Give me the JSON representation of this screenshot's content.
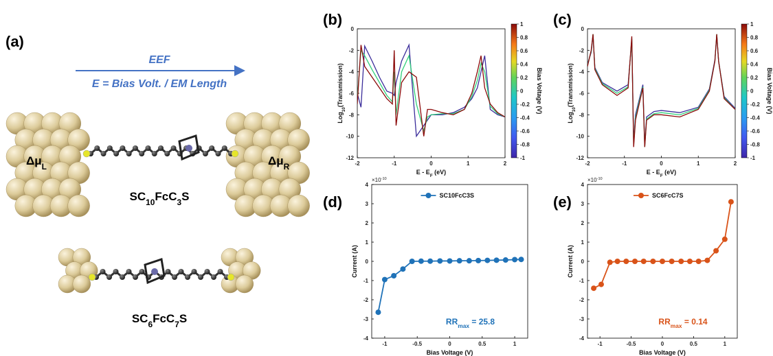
{
  "panel_a": {
    "label": "(a)",
    "arrow_top": "EEF",
    "arrow_bottom": "E = Bias Volt. / EM Length",
    "mu_left_parts": [
      "Δμ",
      "L"
    ],
    "mu_right_parts": [
      "Δμ",
      "R"
    ],
    "molecule_1_parts": [
      "SC",
      "10",
      "FcC",
      "3",
      "S"
    ],
    "molecule_2_parts": [
      "SC",
      "6",
      "FcC",
      "7",
      "S"
    ]
  },
  "chart_data": [
    {
      "type": "line",
      "panel_label": "(b)",
      "x_label_parts": [
        "E - E",
        "F",
        " (eV)"
      ],
      "y_label_parts": [
        "Log",
        "10",
        "(Transmission)"
      ],
      "xlim": [
        -2,
        2
      ],
      "xticks": [
        -2,
        -1,
        0,
        1,
        2
      ],
      "ylim": [
        -12,
        0
      ],
      "yticks": [
        -12,
        -10,
        -8,
        -6,
        -4,
        -2,
        0
      ],
      "colorbar_label": "Bias Voltage (V)",
      "colorbar_lim": [
        -1,
        1
      ],
      "colorbar_ticks": [
        -1,
        -0.8,
        -0.6,
        -0.4,
        -0.2,
        0,
        0.2,
        0.4,
        0.6,
        0.8,
        1
      ],
      "x": [
        -2,
        -1.9,
        -1.8,
        -1.6,
        -1.4,
        -1.2,
        -1.05,
        -1,
        -0.95,
        -0.8,
        -0.6,
        -0.4,
        -0.2,
        -0.1,
        0,
        0.3,
        0.6,
        0.9,
        1.1,
        1.25,
        1.35,
        1.45,
        1.6,
        1.8,
        2
      ],
      "series": [
        {
          "color": "#3a2c9a",
          "values": [
            -6,
            -7.3,
            -1.6,
            -3,
            -4.5,
            -5.8,
            -6,
            -6.2,
            -5,
            -3,
            -1.5,
            -10,
            -9,
            -8.5,
            -8,
            -8,
            -7.8,
            -7.3,
            -6.5,
            -5.5,
            -4,
            -2.5,
            -7.5,
            -8,
            -8.2
          ]
        },
        {
          "color": "#2fcf7a",
          "values": [
            -6.5,
            -2,
            -2.5,
            -3.8,
            -5,
            -6.2,
            -6.8,
            -4,
            -8,
            -4,
            -2.5,
            -7,
            -9.5,
            -8.2,
            -8,
            -7.9,
            -7.9,
            -7.5,
            -6.3,
            -4.8,
            -3.2,
            -4,
            -7.2,
            -7.9,
            -8.2
          ]
        },
        {
          "color": "#8b0a0a",
          "values": [
            -7,
            -1.5,
            -3.5,
            -4.5,
            -5.5,
            -6.5,
            -7,
            -2,
            -9,
            -5,
            -4,
            -4.5,
            -10,
            -7.5,
            -7.5,
            -7.8,
            -8,
            -7.5,
            -6,
            -4,
            -2.5,
            -5.5,
            -7,
            -7.8,
            -8.2
          ]
        }
      ]
    },
    {
      "type": "line",
      "panel_label": "(c)",
      "x_label_parts": [
        "E - E",
        "F",
        " (eV)"
      ],
      "y_label_parts": [
        "Log",
        "10",
        "(Transmission)"
      ],
      "xlim": [
        -2,
        2
      ],
      "xticks": [
        -2,
        -1,
        0,
        1,
        2
      ],
      "ylim": [
        -12,
        0
      ],
      "yticks": [
        -12,
        -10,
        -8,
        -6,
        -4,
        -2,
        0
      ],
      "colorbar_label": "Bias Voltage (V)",
      "colorbar_lim": [
        -1,
        1
      ],
      "colorbar_ticks": [
        -1,
        -0.8,
        -0.6,
        -0.4,
        -0.2,
        0,
        0.2,
        0.4,
        0.6,
        0.8,
        1
      ],
      "x": [
        -2,
        -1.9,
        -1.85,
        -1.8,
        -1.6,
        -1.2,
        -0.9,
        -0.8,
        -0.75,
        -0.7,
        -0.6,
        -0.5,
        -0.45,
        -0.4,
        -0.2,
        0,
        0.5,
        1,
        1.3,
        1.45,
        1.5,
        1.55,
        1.7,
        2
      ],
      "series": [
        {
          "color": "#3a2c9a",
          "values": [
            -3.3,
            -2.2,
            -0.6,
            -3.6,
            -5,
            -5.8,
            -5.2,
            -1,
            -10.5,
            -8,
            -6.6,
            -5.2,
            -10.8,
            -8.2,
            -7.7,
            -7.6,
            -7.8,
            -7.3,
            -5.6,
            -2.9,
            -0.6,
            -3,
            -6.3,
            -7.4
          ]
        },
        {
          "color": "#2fcf7a",
          "values": [
            -3.4,
            -2.1,
            -0.5,
            -3.7,
            -5.1,
            -6,
            -5.4,
            -0.9,
            -10.8,
            -8.3,
            -6.8,
            -5.4,
            -11,
            -8.4,
            -7.9,
            -7.8,
            -8,
            -7.4,
            -5.7,
            -3,
            -0.5,
            -3,
            -6.4,
            -7.5
          ]
        },
        {
          "color": "#8b0a0a",
          "values": [
            -3.5,
            -2,
            -0.5,
            -3.8,
            -5.2,
            -6.2,
            -5.5,
            -0.7,
            -11,
            -8.5,
            -7,
            -5.5,
            -11,
            -8.5,
            -8,
            -8,
            -8.2,
            -7.5,
            -5.8,
            -3,
            -0.5,
            -3,
            -6.5,
            -7.5
          ]
        }
      ]
    },
    {
      "type": "scatter-line",
      "panel_label": "(d)",
      "x_label": "Bias Voltage (V)",
      "y_label": "Current (A)",
      "exponent_parts": [
        "×10",
        "-10"
      ],
      "annotation_parts": [
        "RR",
        "max",
        " = 25.8"
      ],
      "xlim": [
        -1.2,
        1.2
      ],
      "xticks": [
        -1,
        -0.5,
        0,
        0.5,
        1
      ],
      "ylim": [
        -4,
        4
      ],
      "yticks": [
        -4,
        -3,
        -2,
        -1,
        0,
        1,
        2,
        3,
        4
      ],
      "x": [
        -1.1,
        -1,
        -0.86,
        -0.72,
        -0.58,
        -0.44,
        -0.3,
        -0.15,
        0,
        0.15,
        0.3,
        0.44,
        0.58,
        0.72,
        0.86,
        1,
        1.1
      ],
      "series": [
        {
          "name": "SC10FcC3S",
          "color": "#1f72b8",
          "values": [
            -2.65,
            -0.95,
            -0.75,
            -0.4,
            0,
            0.01,
            0.01,
            0.02,
            0.02,
            0.03,
            0.03,
            0.04,
            0.05,
            0.06,
            0.07,
            0.09,
            0.1
          ]
        }
      ]
    },
    {
      "type": "scatter-line",
      "panel_label": "(e)",
      "x_label": "Bias Voltage (V)",
      "y_label": "Current (A)",
      "exponent_parts": [
        "×10",
        "-10"
      ],
      "annotation_parts": [
        "RR",
        "max",
        " = 0.14"
      ],
      "xlim": [
        -1.2,
        1.2
      ],
      "xticks": [
        -1,
        -0.5,
        0,
        0.5,
        1
      ],
      "ylim": [
        -4,
        4
      ],
      "yticks": [
        -4,
        -3,
        -2,
        -1,
        0,
        1,
        2,
        3,
        4
      ],
      "x": [
        -1.1,
        -0.98,
        -0.84,
        -0.72,
        -0.58,
        -0.44,
        -0.3,
        -0.15,
        0,
        0.15,
        0.3,
        0.44,
        0.58,
        0.72,
        0.86,
        1,
        1.1
      ],
      "series": [
        {
          "name": "SC6FcC7S",
          "color": "#d95319",
          "values": [
            -1.4,
            -1.2,
            -0.05,
            0,
            0,
            0,
            0,
            0,
            0,
            0,
            0,
            0,
            0,
            0.05,
            0.55,
            1.15,
            3.1
          ]
        }
      ]
    }
  ]
}
